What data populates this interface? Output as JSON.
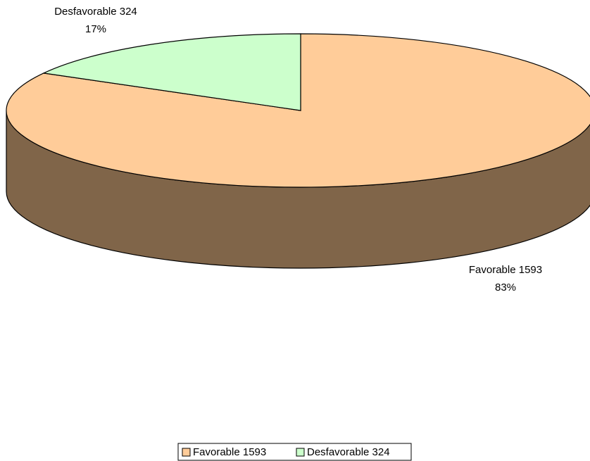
{
  "chart_data": {
    "type": "pie",
    "style": "3d",
    "categories": [
      "Favorable 1593",
      "Desfavorable 324"
    ],
    "values": [
      1593,
      324
    ],
    "percent_labels": [
      "83%",
      "17%"
    ],
    "colors": {
      "Favorable 1593": "#FFCC99",
      "Desfavorable 324": "#CCFFCC",
      "side": "#806549",
      "outline": "#000000"
    },
    "legend": {
      "position": "bottom",
      "entries": [
        "Favorable 1593",
        "Desfavorable 324"
      ]
    }
  }
}
